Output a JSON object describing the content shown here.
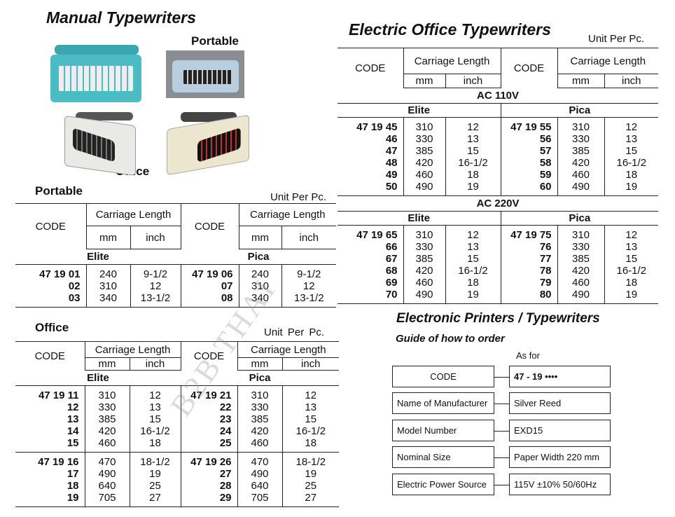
{
  "manual": {
    "title": "Manual Typewriters",
    "portable_photo_label": "Portable",
    "office_photo_label": "Office"
  },
  "watermark": "B2B THAI",
  "headers": {
    "code": "CODE",
    "carriage": "Carriage Length",
    "mm": "mm",
    "inch": "inch",
    "unit": "Unit Per Pc.",
    "unit_office": "Unit  Per Pc."
  },
  "portable": {
    "heading": "Portable",
    "left_group": "Elite",
    "right_group": "Pica",
    "sections": [
      {
        "left": [
          {
            "code": "47 19 01",
            "mm": "240",
            "inch": "9-1/2"
          },
          {
            "code": "02",
            "mm": "310",
            "inch": "12"
          },
          {
            "code": "03",
            "mm": "340",
            "inch": "13-1/2"
          }
        ],
        "right": [
          {
            "code": "47 19 06",
            "mm": "240",
            "inch": "9-1/2"
          },
          {
            "code": "07",
            "mm": "310",
            "inch": "12"
          },
          {
            "code": "08",
            "mm": "340",
            "inch": "13-1/2"
          }
        ]
      }
    ]
  },
  "office": {
    "heading": "Office",
    "left_group": "Elite",
    "right_group": "Pica",
    "sections": [
      {
        "left": [
          {
            "code": "47 19 11",
            "mm": "310",
            "inch": "12"
          },
          {
            "code": "12",
            "mm": "330",
            "inch": "13"
          },
          {
            "code": "13",
            "mm": "385",
            "inch": "15"
          },
          {
            "code": "14",
            "mm": "420",
            "inch": "16-1/2"
          },
          {
            "code": "15",
            "mm": "460",
            "inch": "18"
          }
        ],
        "right": [
          {
            "code": "47 19 21",
            "mm": "310",
            "inch": "12"
          },
          {
            "code": "22",
            "mm": "330",
            "inch": "13"
          },
          {
            "code": "23",
            "mm": "385",
            "inch": "15"
          },
          {
            "code": "24",
            "mm": "420",
            "inch": "16-1/2"
          },
          {
            "code": "25",
            "mm": "460",
            "inch": "18"
          }
        ]
      },
      {
        "left": [
          {
            "code": "47 19 16",
            "mm": "470",
            "inch": "18-1/2"
          },
          {
            "code": "17",
            "mm": "490",
            "inch": "19"
          },
          {
            "code": "18",
            "mm": "640",
            "inch": "25"
          },
          {
            "code": "19",
            "mm": "705",
            "inch": "27"
          }
        ],
        "right": [
          {
            "code": "47 19 26",
            "mm": "470",
            "inch": "18-1/2"
          },
          {
            "code": "27",
            "mm": "490",
            "inch": "19"
          },
          {
            "code": "28",
            "mm": "640",
            "inch": "25"
          },
          {
            "code": "29",
            "mm": "705",
            "inch": "27"
          }
        ]
      }
    ]
  },
  "electric": {
    "title": "Electric Office Typewriters",
    "voltages": [
      {
        "label": "AC 110V",
        "left_group": "Elite",
        "right_group": "Pica",
        "left": [
          {
            "code": "47 19 45",
            "mm": "310",
            "inch": "12"
          },
          {
            "code": "46",
            "mm": "330",
            "inch": "13"
          },
          {
            "code": "47",
            "mm": "385",
            "inch": "15"
          },
          {
            "code": "48",
            "mm": "420",
            "inch": "16-1/2"
          },
          {
            "code": "49",
            "mm": "460",
            "inch": "18"
          },
          {
            "code": "50",
            "mm": "490",
            "inch": "19"
          }
        ],
        "right": [
          {
            "code": "47 19 55",
            "mm": "310",
            "inch": "12"
          },
          {
            "code": "56",
            "mm": "330",
            "inch": "13"
          },
          {
            "code": "57",
            "mm": "385",
            "inch": "15"
          },
          {
            "code": "58",
            "mm": "420",
            "inch": "16-1/2"
          },
          {
            "code": "59",
            "mm": "460",
            "inch": "18"
          },
          {
            "code": "60",
            "mm": "490",
            "inch": "19"
          }
        ]
      },
      {
        "label": "AC 220V",
        "left_group": "Elite",
        "right_group": "Pica",
        "left": [
          {
            "code": "47 19 65",
            "mm": "310",
            "inch": "12"
          },
          {
            "code": "66",
            "mm": "330",
            "inch": "13"
          },
          {
            "code": "67",
            "mm": "385",
            "inch": "15"
          },
          {
            "code": "68",
            "mm": "420",
            "inch": "16-1/2"
          },
          {
            "code": "69",
            "mm": "460",
            "inch": "18"
          },
          {
            "code": "70",
            "mm": "490",
            "inch": "19"
          }
        ],
        "right": [
          {
            "code": "47 19 75",
            "mm": "310",
            "inch": "12"
          },
          {
            "code": "76",
            "mm": "330",
            "inch": "13"
          },
          {
            "code": "77",
            "mm": "385",
            "inch": "15"
          },
          {
            "code": "78",
            "mm": "420",
            "inch": "16-1/2"
          },
          {
            "code": "79",
            "mm": "460",
            "inch": "18"
          },
          {
            "code": "80",
            "mm": "490",
            "inch": "19"
          }
        ]
      }
    ]
  },
  "guide": {
    "title": "Electronic Printers / Typewriters",
    "subtitle": "Guide of how to order",
    "as_for": "As for",
    "rows": [
      {
        "label": "CODE",
        "value": "47 - 19 ••••"
      },
      {
        "label": "Name of Manufacturer",
        "value": "Silver Reed"
      },
      {
        "label": "Model Number",
        "value": "EXD15"
      },
      {
        "label": "Nominal Size",
        "value": "Paper Width 220 mm"
      },
      {
        "label": "Electric Power Source",
        "value": "115V ±10% 50/60Hz"
      }
    ]
  }
}
